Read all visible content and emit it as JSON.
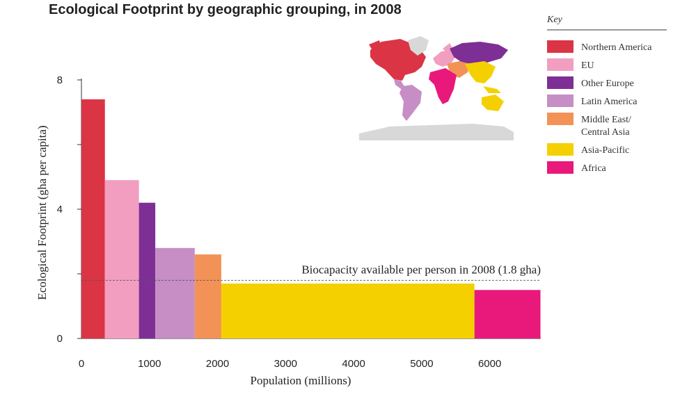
{
  "chart_data": {
    "type": "bar",
    "title": "Ecological Footprint by geographic grouping, in 2008",
    "xlabel": "Population (millions)",
    "ylabel": "Ecological Footprint (gha per capita)",
    "xlim": [
      0,
      6750
    ],
    "ylim": [
      0,
      8
    ],
    "x_ticks": [
      0,
      1000,
      2000,
      3000,
      4000,
      5000,
      6000
    ],
    "y_ticks_labeled": [
      0,
      4,
      8
    ],
    "y_ticks_minor": [
      2,
      6
    ],
    "grid": false,
    "legend_placement": "right",
    "legend_title": "Key",
    "series": [
      {
        "name": "Northern America",
        "population_millions": 345,
        "footprint_gha": 7.4,
        "color": "#db3445"
      },
      {
        "name": "EU",
        "population_millions": 500,
        "footprint_gha": 4.9,
        "color": "#f29ec0"
      },
      {
        "name": "Other Europe",
        "population_millions": 240,
        "footprint_gha": 4.2,
        "color": "#7d2f95"
      },
      {
        "name": "Latin America",
        "population_millions": 580,
        "footprint_gha": 2.8,
        "color": "#c68ec4"
      },
      {
        "name": "Middle East/ Central Asia",
        "legend_lines": [
          "Middle East/",
          "Central Asia"
        ],
        "population_millions": 390,
        "footprint_gha": 2.6,
        "color": "#f39257"
      },
      {
        "name": "Asia-Pacific",
        "population_millions": 3720,
        "footprint_gha": 1.7,
        "color": "#f5d000"
      },
      {
        "name": "Africa",
        "population_millions": 970,
        "footprint_gha": 1.5,
        "color": "#e8197b"
      }
    ],
    "reference_line": {
      "value": 1.8,
      "label": "Biocapacity available per person in 2008 (1.8 gha)"
    }
  }
}
